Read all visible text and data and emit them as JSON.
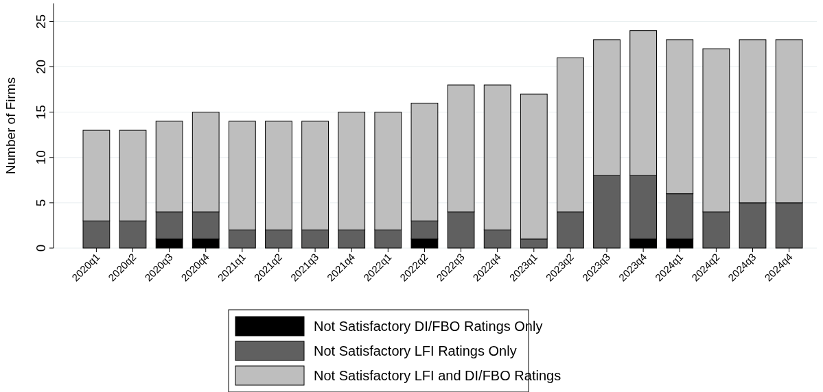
{
  "chart_data": {
    "type": "bar",
    "stacked": true,
    "ylabel": "Number of Firms",
    "categories": [
      "2020q1",
      "2020q2",
      "2020q3",
      "2020q4",
      "2021q1",
      "2021q2",
      "2021q3",
      "2021q4",
      "2022q1",
      "2022q2",
      "2022q3",
      "2022q4",
      "2023q1",
      "2023q2",
      "2023q3",
      "2023q4",
      "2024q1",
      "2024q2",
      "2024q3",
      "2024q4"
    ],
    "series": [
      {
        "name": "Not Satisfactory DI/FBO Ratings Only",
        "color": "#000000",
        "values": [
          0,
          0,
          1,
          1,
          0,
          0,
          0,
          0,
          0,
          1,
          0,
          0,
          0,
          0,
          0,
          1,
          1,
          0,
          0,
          0
        ]
      },
      {
        "name": "Not Satisfactory LFI Ratings Only",
        "color": "#606060",
        "values": [
          3,
          3,
          3,
          3,
          2,
          2,
          2,
          2,
          2,
          2,
          4,
          2,
          1,
          4,
          8,
          7,
          5,
          4,
          5,
          5
        ]
      },
      {
        "name": "Not Satisfactory LFI and DI/FBO Ratings",
        "color": "#bebebe",
        "values": [
          10,
          10,
          10,
          11,
          12,
          12,
          12,
          13,
          13,
          13,
          14,
          16,
          16,
          17,
          15,
          16,
          17,
          18,
          18,
          18
        ]
      }
    ],
    "ylim": [
      0,
      27
    ],
    "yticks": [
      0,
      5,
      10,
      15,
      20,
      25
    ],
    "grid": "y",
    "legend": "bottom"
  }
}
